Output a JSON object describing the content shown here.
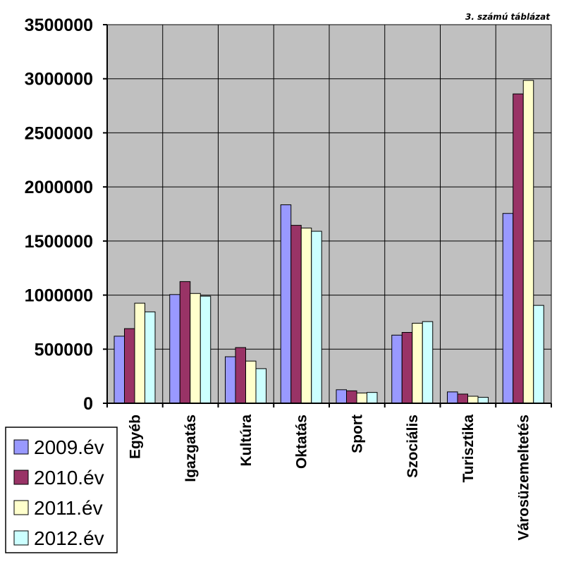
{
  "chart_data": {
    "type": "bar",
    "caption": "3. számú táblázat",
    "categories": [
      "Egyéb",
      "Igazgatás",
      "Kultúra",
      "Oktatás",
      "Sport",
      "Szociális",
      "Turisztika",
      "Városüzemeltetés"
    ],
    "series": [
      {
        "name": "2009.év",
        "color": "#9999ff",
        "values": [
          620000,
          1005000,
          430000,
          1835000,
          125000,
          630000,
          105000,
          1755000
        ]
      },
      {
        "name": "2010.év",
        "color": "#993366",
        "values": [
          690000,
          1125000,
          515000,
          1645000,
          115000,
          655000,
          85000,
          2860000
        ]
      },
      {
        "name": "2011.év",
        "color": "#ffffcc",
        "values": [
          925000,
          1015000,
          390000,
          1620000,
          95000,
          740000,
          65000,
          2985000
        ]
      },
      {
        "name": "2012.év",
        "color": "#ccffff",
        "values": [
          845000,
          990000,
          320000,
          1590000,
          100000,
          755000,
          55000,
          905000
        ]
      }
    ],
    "ylim": [
      0,
      3500000
    ],
    "yticks": [
      "0",
      "500000",
      "1000000",
      "1500000",
      "2000000",
      "2500000",
      "3000000",
      "3500000"
    ],
    "grid": true,
    "legend": "bottom-left",
    "plot_background": "#c0c0c0"
  }
}
